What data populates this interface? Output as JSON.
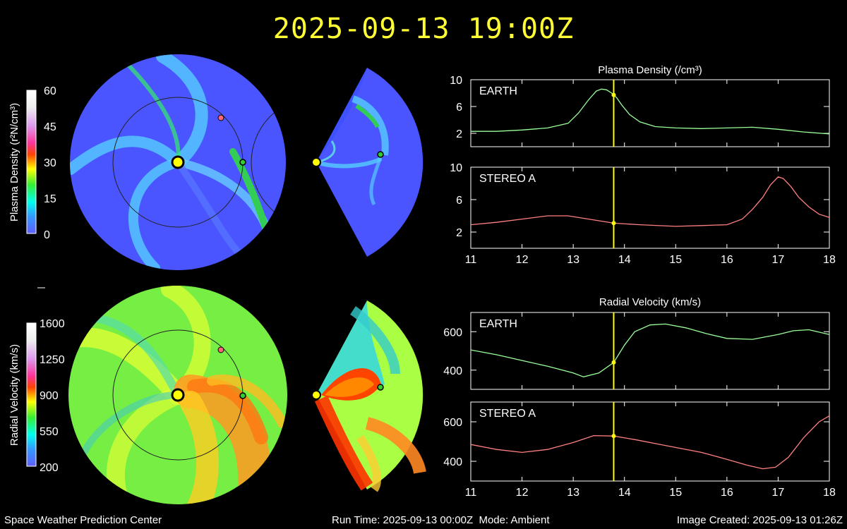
{
  "timestamp": "2025-09-13 19:00Z",
  "footer": {
    "center": "Space Weather Prediction Center",
    "run_time": "Run Time: 2025-09-13 00:00Z",
    "mode": "Mode: Ambient",
    "image_created": "Image Created: 2025-09-13 01:26Z"
  },
  "colorbars": {
    "density": {
      "label": "Plasma Density (r²N/cm³)",
      "ticks": [
        "60",
        "45",
        "30",
        "15",
        "0"
      ]
    },
    "velocity": {
      "label": "Radial Velocity (km/s)",
      "ticks": [
        "1600",
        "1250",
        "900",
        "550",
        "200"
      ]
    }
  },
  "colors": {
    "title": "#ffff33",
    "earth_line": "#99ff99",
    "stereo_line": "#ff8080",
    "marker": "#ffff00"
  },
  "chart_data": [
    {
      "type": "line",
      "title": "Plasma Density (/cm³)",
      "ylabel": "",
      "xlim": [
        11,
        18
      ],
      "x_ticks": [
        11,
        12,
        13,
        14,
        15,
        16,
        17,
        18
      ],
      "current_time_x": 13.79,
      "panels": [
        {
          "label": "EARTH",
          "ylim": [
            0,
            10
          ],
          "y_ticks": [
            2,
            6,
            10
          ],
          "series": [
            {
              "x": [
                11,
                11.5,
                12,
                12.5,
                12.9,
                13.1,
                13.3,
                13.45,
                13.55,
                13.65,
                13.75,
                13.85,
                13.95,
                14.1,
                14.3,
                14.6,
                15,
                15.5,
                16,
                16.5,
                17,
                17.5,
                18
              ],
              "values": [
                2.3,
                2.3,
                2.5,
                2.8,
                3.5,
                5.0,
                7.0,
                8.3,
                8.6,
                8.5,
                8.0,
                7.3,
                6.2,
                4.8,
                3.7,
                3.0,
                2.8,
                2.7,
                2.8,
                2.9,
                2.6,
                2.2,
                1.9
              ]
            }
          ]
        },
        {
          "label": "STEREO A",
          "ylim": [
            0,
            10
          ],
          "y_ticks": [
            2,
            6,
            10
          ],
          "series": [
            {
              "x": [
                11,
                11.5,
                12,
                12.5,
                12.9,
                13.3,
                13.79,
                14.3,
                15,
                15.5,
                16,
                16.3,
                16.5,
                16.7,
                16.85,
                17,
                17.1,
                17.25,
                17.4,
                17.6,
                17.8,
                18
              ],
              "values": [
                2.9,
                3.2,
                3.6,
                4.0,
                4.0,
                3.6,
                3.1,
                2.9,
                2.7,
                2.8,
                2.9,
                3.6,
                4.8,
                6.3,
                7.8,
                8.8,
                8.6,
                7.6,
                6.3,
                5.1,
                4.2,
                3.8
              ]
            }
          ]
        }
      ]
    },
    {
      "type": "line",
      "title": "Radial Velocity (km/s)",
      "ylabel": "",
      "xlim": [
        11,
        18
      ],
      "x_ticks": [
        11,
        12,
        13,
        14,
        15,
        16,
        17,
        18
      ],
      "current_time_x": 13.79,
      "panels": [
        {
          "label": "EARTH",
          "ylim": [
            300,
            700
          ],
          "y_ticks": [
            400,
            600
          ],
          "series": [
            {
              "x": [
                11,
                11.5,
                12,
                12.5,
                13,
                13.2,
                13.5,
                13.79,
                14,
                14.2,
                14.5,
                14.8,
                15.2,
                15.6,
                16,
                16.5,
                17,
                17.3,
                17.6,
                18
              ],
              "values": [
                505,
                480,
                450,
                420,
                385,
                365,
                385,
                440,
                530,
                600,
                635,
                640,
                620,
                590,
                565,
                560,
                585,
                605,
                610,
                585
              ]
            }
          ]
        },
        {
          "label": "STEREO A",
          "ylim": [
            300,
            700
          ],
          "y_ticks": [
            400,
            600
          ],
          "series": [
            {
              "x": [
                11,
                11.5,
                12,
                12.5,
                13,
                13.4,
                13.79,
                14.2,
                14.8,
                15.5,
                16,
                16.4,
                16.7,
                16.95,
                17.2,
                17.5,
                17.8,
                18
              ],
              "values": [
                485,
                460,
                445,
                460,
                495,
                530,
                528,
                510,
                480,
                445,
                410,
                380,
                362,
                370,
                420,
                520,
                600,
                630
              ]
            }
          ]
        }
      ]
    }
  ]
}
